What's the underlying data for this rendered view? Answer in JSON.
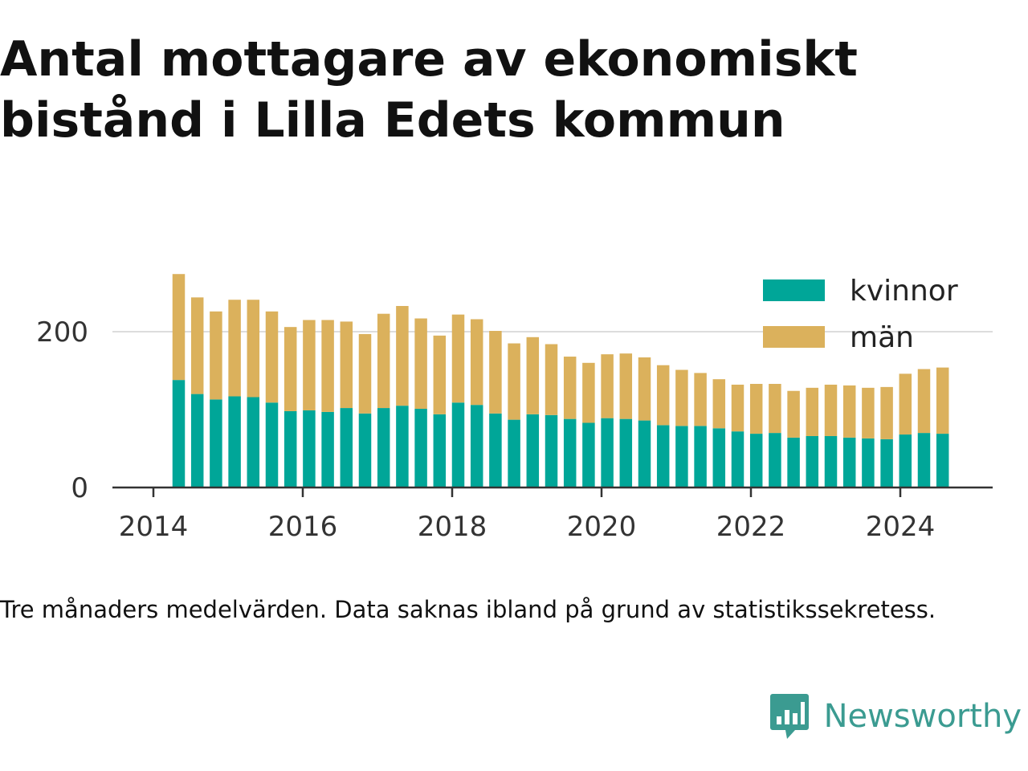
{
  "title": "Antal mottagare av ekonomiskt bistånd i Lilla Edets kommun",
  "caption": "Tre månaders medelvärden. Data saknas ibland på grund av statistikssekretess.",
  "brand": {
    "name": "Newsworthy",
    "logo_icon": "newsworthy-logo-icon"
  },
  "chart_data": {
    "type": "bar",
    "stacked": true,
    "title": "Antal mottagare av ekonomiskt bistånd i Lilla Edets kommun",
    "xlabel": "",
    "ylabel": "",
    "x_ticks": [
      "2014",
      "2016",
      "2018",
      "2020",
      "2022",
      "2024"
    ],
    "y_ticks": [
      "0",
      "200"
    ],
    "ylim": [
      0,
      290
    ],
    "grid": "horizontal",
    "legend_position": "top-right",
    "categories": [
      "2014-Q2",
      "2014-Q3",
      "2014-Q4",
      "2015-Q1",
      "2015-Q2",
      "2015-Q3",
      "2015-Q4",
      "2016-Q1",
      "2016-Q2",
      "2016-Q3",
      "2016-Q4",
      "2017-Q1",
      "2017-Q2",
      "2017-Q3",
      "2017-Q4",
      "2018-Q1",
      "2018-Q2",
      "2018-Q3",
      "2018-Q4",
      "2019-Q1",
      "2019-Q2",
      "2019-Q3",
      "2019-Q4",
      "2020-Q1",
      "2020-Q2",
      "2020-Q3",
      "2020-Q4",
      "2021-Q1",
      "2021-Q2",
      "2021-Q3",
      "2021-Q4",
      "2022-Q1",
      "2022-Q2",
      "2022-Q3",
      "2022-Q4",
      "2023-Q1",
      "2023-Q2",
      "2023-Q3",
      "2023-Q4",
      "2024-Q1",
      "2024-Q2",
      "2024-Q3"
    ],
    "series": [
      {
        "name": "kvinnor",
        "color": "#00a698",
        "values": [
          138,
          120,
          113,
          117,
          116,
          109,
          98,
          99,
          97,
          102,
          95,
          102,
          105,
          101,
          94,
          109,
          106,
          95,
          87,
          94,
          93,
          88,
          83,
          89,
          88,
          86,
          80,
          79,
          79,
          76,
          72,
          69,
          70,
          64,
          66,
          66,
          64,
          63,
          62,
          68,
          70,
          69
        ]
      },
      {
        "name": "män",
        "color": "#dbb15c",
        "values": [
          136,
          124,
          113,
          124,
          125,
          117,
          108,
          116,
          118,
          111,
          102,
          121,
          128,
          116,
          101,
          113,
          110,
          106,
          98,
          99,
          91,
          80,
          77,
          82,
          84,
          81,
          77,
          72,
          68,
          63,
          60,
          64,
          63,
          60,
          62,
          66,
          67,
          65,
          67,
          78,
          82,
          85
        ]
      }
    ]
  }
}
